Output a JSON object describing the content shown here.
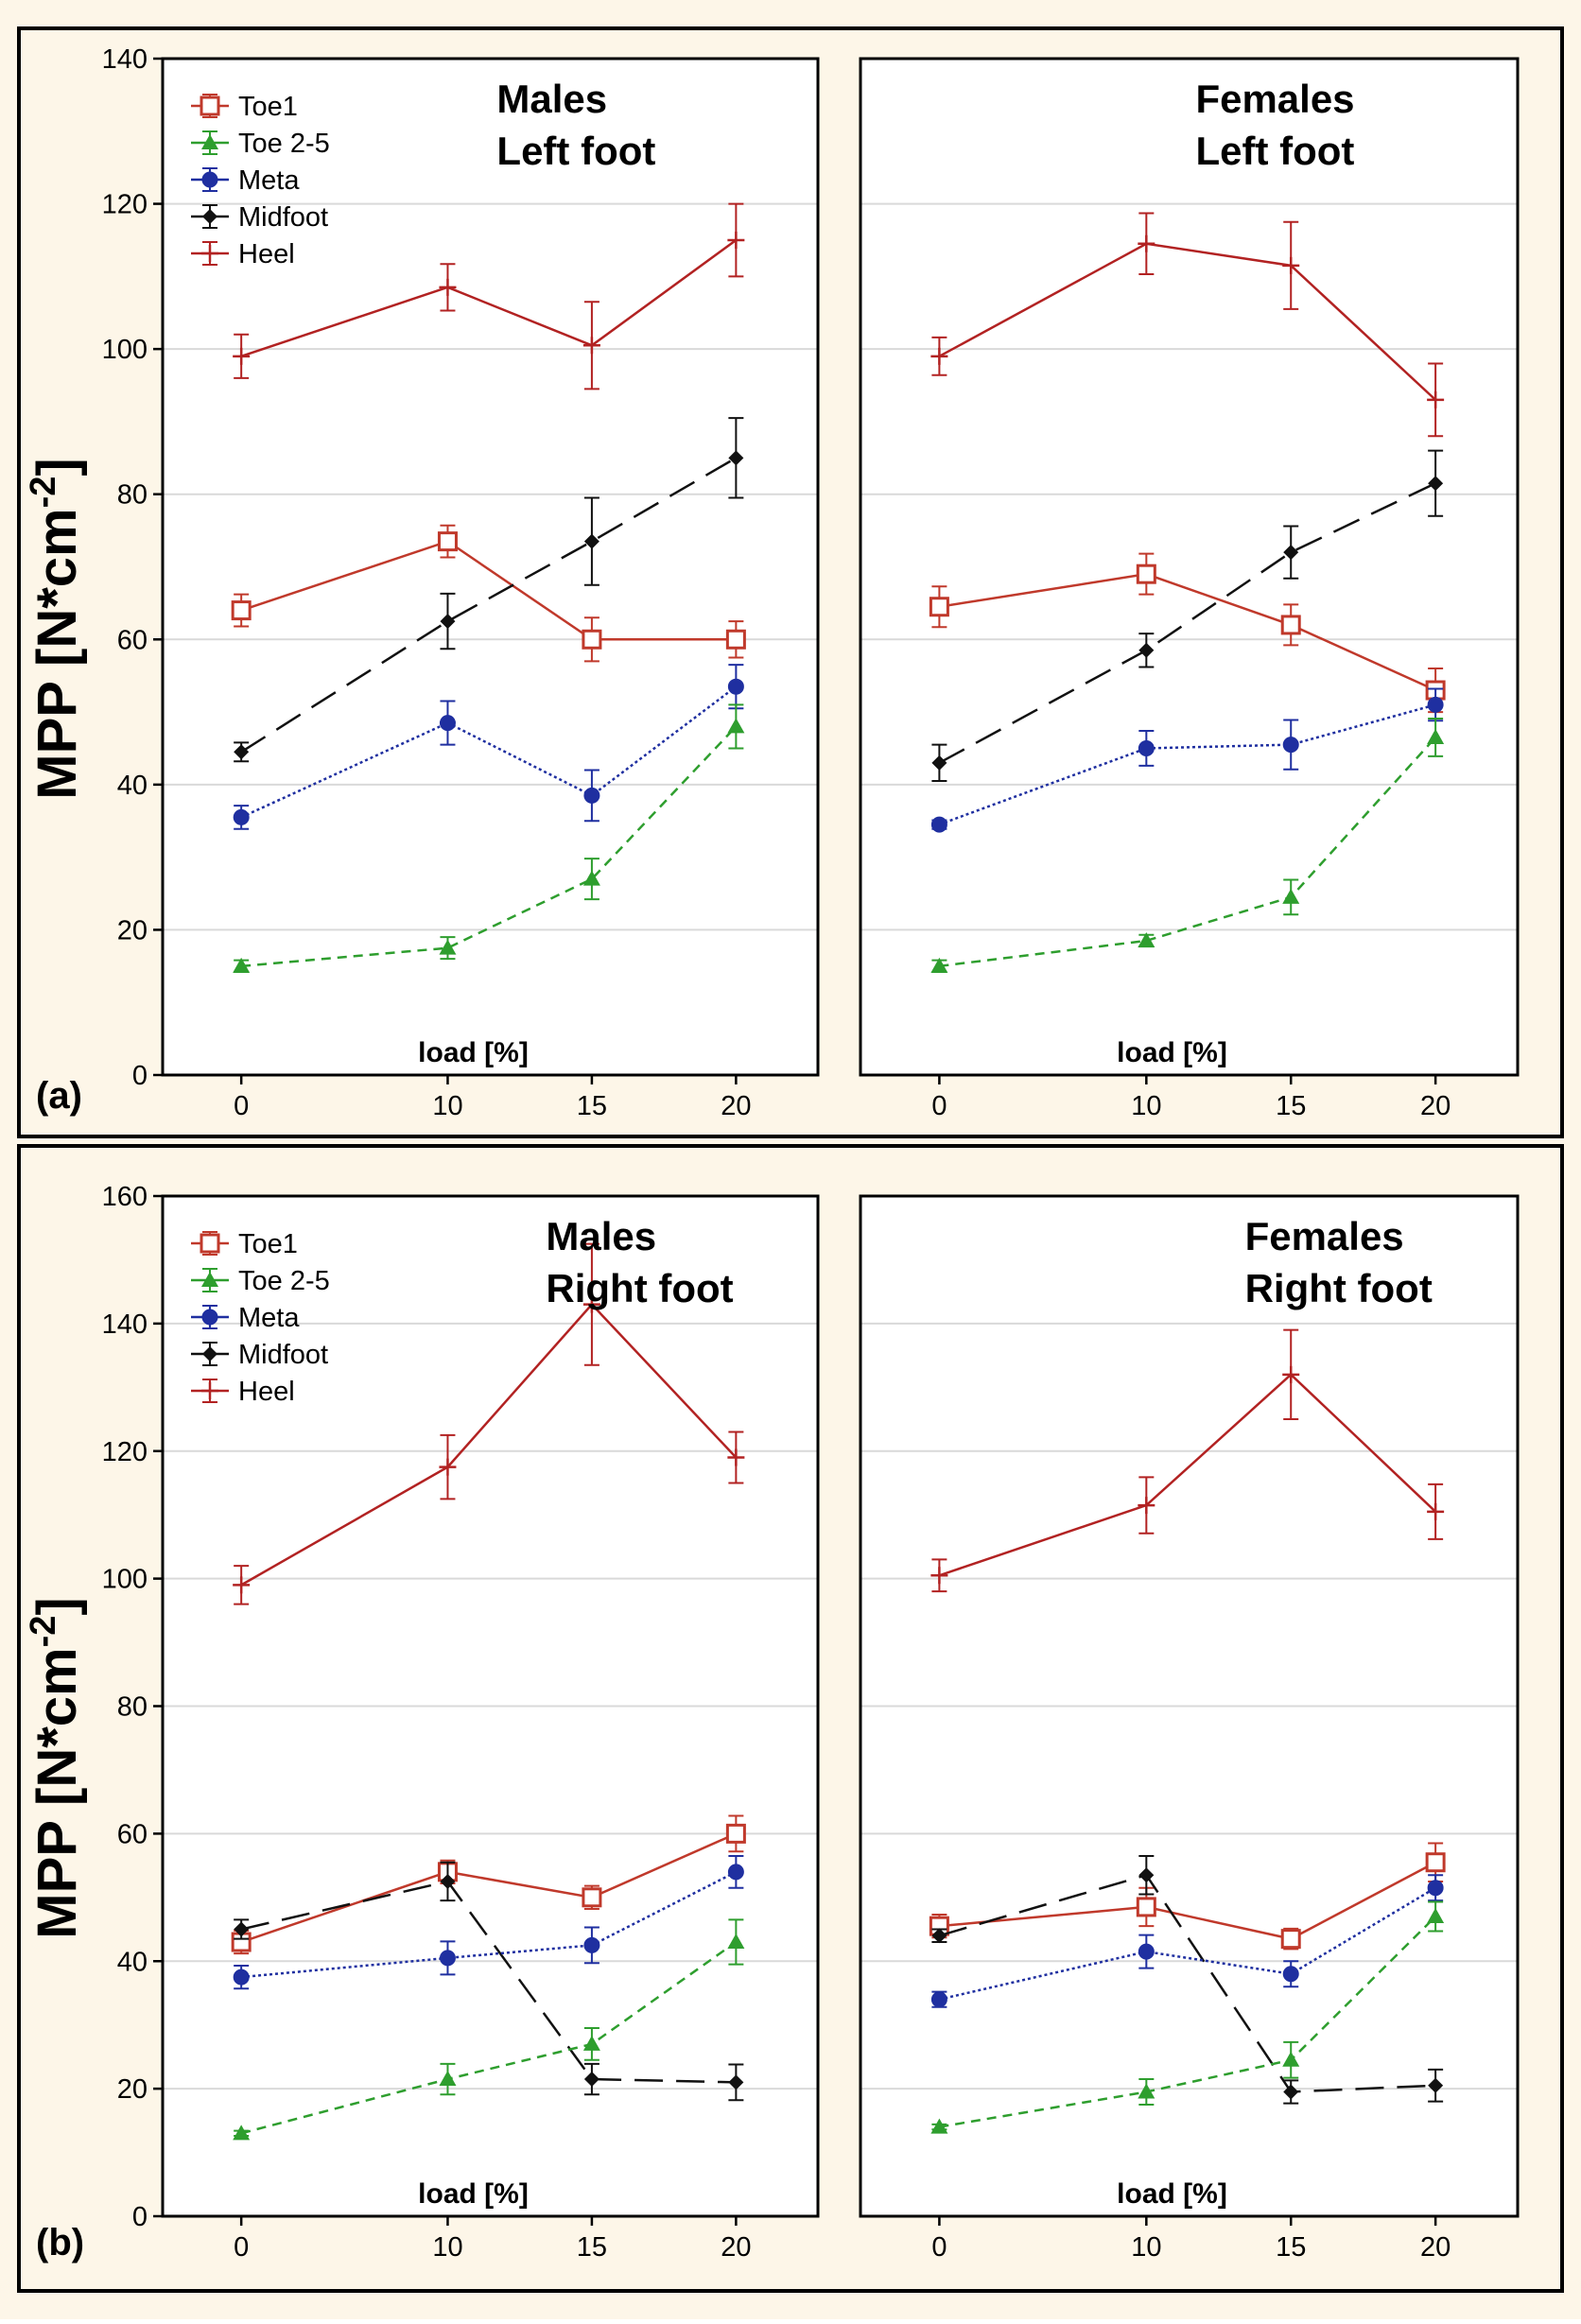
{
  "figure": {
    "ylabel_main": "MPP [N*cm",
    "ylabel_sup": "-2",
    "ylabel_close": "]"
  },
  "colors": {
    "background": "#FDF6E8",
    "plot_bg": "#FFFFFF",
    "grid": "#D9D9D9",
    "heel": "#B22222",
    "toe1": "#C0392B",
    "toe25": "#2E9E2E",
    "meta": "#1F2FA0",
    "midfoot": "#111111"
  },
  "panels": [
    {
      "label": "(a)",
      "ylim": [
        0,
        140
      ],
      "yticks": [
        0,
        20,
        40,
        60,
        80,
        100,
        120,
        140
      ],
      "xticks": [
        "0",
        "10",
        "15",
        "20"
      ],
      "xlabel": "load [%]",
      "legend": [
        "Toe1",
        "Toe 2-5",
        "Meta",
        "Midfoot",
        "Heel"
      ]
    },
    {
      "label": "(b)",
      "ylim": [
        0,
        160
      ],
      "yticks": [
        0,
        20,
        40,
        60,
        80,
        100,
        120,
        140,
        160
      ],
      "xticks": [
        "0",
        "10",
        "15",
        "20"
      ],
      "xlabel": "load [%]",
      "legend": [
        "Toe1",
        "Toe 2-5",
        "Meta",
        "Midfoot",
        "Heel"
      ]
    }
  ],
  "chart_data": [
    {
      "type": "line",
      "panel": "a",
      "title": [
        "Males",
        "Left foot"
      ],
      "xlabel": "load [%]",
      "ylabel": "MPP [N*cm-2]",
      "ylim": [
        0,
        140
      ],
      "x": [
        0,
        10,
        15,
        20
      ],
      "legend": true,
      "series": [
        {
          "name": "Heel",
          "values": [
            99,
            108.5,
            100.5,
            115
          ],
          "err": [
            3,
            3.2,
            6,
            5
          ]
        },
        {
          "name": "Toe1",
          "values": [
            64,
            73.5,
            60,
            60
          ],
          "err": [
            2.2,
            2.2,
            3,
            2.5
          ]
        },
        {
          "name": "Midfoot",
          "values": [
            44.5,
            62.5,
            73.5,
            85
          ],
          "err": [
            1.3,
            3.8,
            6,
            5.5
          ]
        },
        {
          "name": "Meta",
          "values": [
            35.5,
            48.5,
            38.5,
            53.5
          ],
          "err": [
            1.6,
            3,
            3.5,
            3
          ]
        },
        {
          "name": "Toe 2-5",
          "values": [
            15,
            17.5,
            27,
            48
          ],
          "err": [
            0.8,
            1.5,
            2.8,
            3
          ]
        }
      ]
    },
    {
      "type": "line",
      "panel": "a",
      "title": [
        "Females",
        "Left foot"
      ],
      "xlabel": "load [%]",
      "ylabel": "MPP [N*cm-2]",
      "ylim": [
        0,
        140
      ],
      "x": [
        0,
        10,
        15,
        20
      ],
      "legend": false,
      "series": [
        {
          "name": "Heel",
          "values": [
            99,
            114.5,
            111.5,
            93
          ],
          "err": [
            2.6,
            4.2,
            6,
            5
          ]
        },
        {
          "name": "Toe1",
          "values": [
            64.5,
            69,
            62,
            53
          ],
          "err": [
            2.8,
            2.8,
            2.8,
            3
          ]
        },
        {
          "name": "Midfoot",
          "values": [
            43,
            58.5,
            72,
            81.5
          ],
          "err": [
            2.5,
            2.3,
            3.6,
            4.5
          ]
        },
        {
          "name": "Meta",
          "values": [
            34.5,
            45,
            45.5,
            51
          ],
          "err": [
            0.6,
            2.4,
            3.4,
            2.2
          ]
        },
        {
          "name": "Toe 2-5",
          "values": [
            15,
            18.5,
            24.5,
            46.5
          ],
          "err": [
            0.8,
            0.8,
            2.4,
            2.6
          ]
        }
      ]
    },
    {
      "type": "line",
      "panel": "b",
      "title": [
        "Males",
        "Right foot"
      ],
      "xlabel": "load [%]",
      "ylabel": "MPP [N*cm-2]",
      "ylim": [
        0,
        160
      ],
      "x": [
        0,
        10,
        15,
        20
      ],
      "legend": true,
      "series": [
        {
          "name": "Heel",
          "values": [
            99,
            117.5,
            143,
            119
          ],
          "err": [
            3,
            5,
            9.5,
            4
          ]
        },
        {
          "name": "Toe1",
          "values": [
            43,
            54,
            50,
            60
          ],
          "err": [
            1.8,
            1.8,
            1.8,
            2.8
          ]
        },
        {
          "name": "Midfoot",
          "values": [
            45,
            52.5,
            21.5,
            21
          ],
          "err": [
            1.5,
            3,
            2.4,
            2.8
          ]
        },
        {
          "name": "Meta",
          "values": [
            37.5,
            40.5,
            42.5,
            54
          ],
          "err": [
            1.8,
            2.6,
            2.8,
            2.5
          ]
        },
        {
          "name": "Toe 2-5",
          "values": [
            13,
            21.5,
            27,
            43
          ],
          "err": [
            0.4,
            2.4,
            2.5,
            3.5
          ]
        }
      ]
    },
    {
      "type": "line",
      "panel": "b",
      "title": [
        "Females",
        "Right foot"
      ],
      "xlabel": "load [%]",
      "ylabel": "MPP [N*cm-2]",
      "ylim": [
        0,
        160
      ],
      "x": [
        0,
        10,
        15,
        20
      ],
      "legend": false,
      "series": [
        {
          "name": "Heel",
          "values": [
            100.5,
            111.5,
            132,
            110.5
          ],
          "err": [
            2.5,
            4.4,
            7,
            4.3
          ]
        },
        {
          "name": "Toe1",
          "values": [
            45.5,
            48.5,
            43.5,
            55.5
          ],
          "err": [
            1.8,
            3,
            1.6,
            3
          ]
        },
        {
          "name": "Midfoot",
          "values": [
            44,
            53.5,
            19.5,
            20.5
          ],
          "err": [
            1,
            3,
            1.8,
            2.5
          ]
        },
        {
          "name": "Meta",
          "values": [
            34,
            41.5,
            38,
            51.5
          ],
          "err": [
            1.2,
            2.6,
            2,
            2
          ]
        },
        {
          "name": "Toe 2-5",
          "values": [
            14,
            19.5,
            24.5,
            47
          ],
          "err": [
            0.4,
            2,
            2.8,
            2.3
          ]
        }
      ]
    }
  ]
}
